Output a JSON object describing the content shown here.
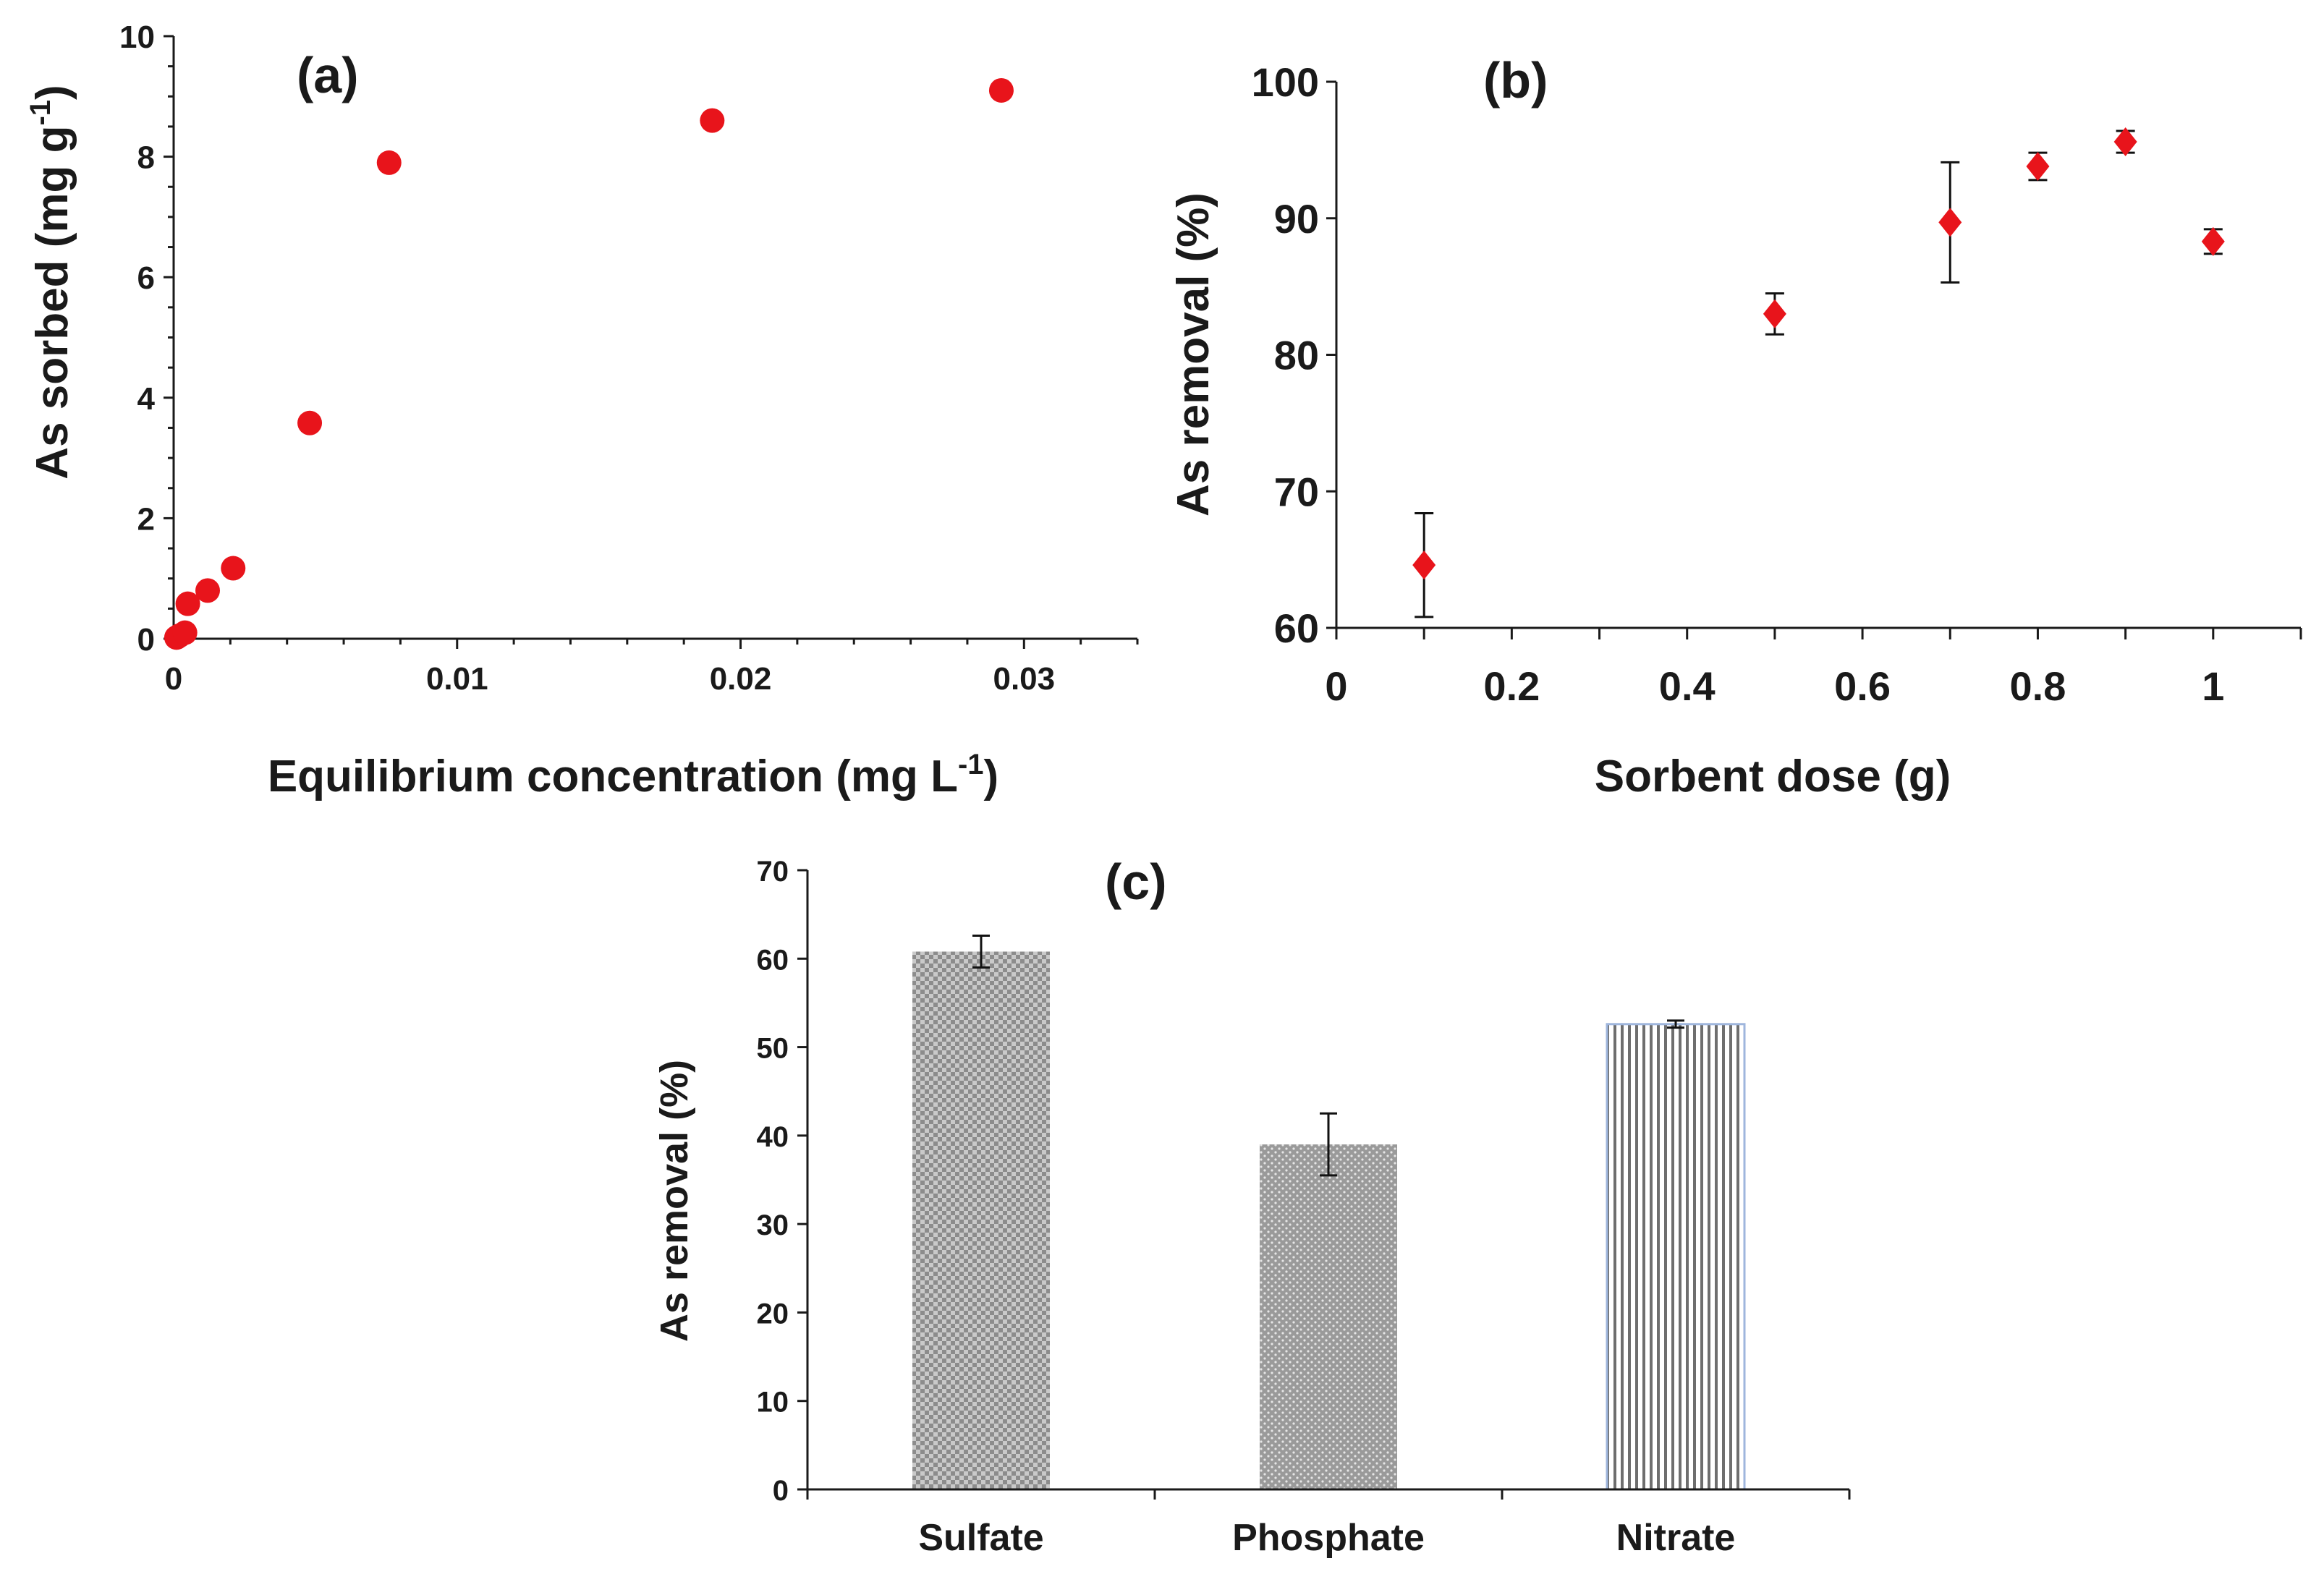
{
  "chart_data": [
    {
      "type": "scatter",
      "panel_label": "(a)",
      "xlabel": "Equilibrium concentration (mg L",
      "xlabel_sup": "-1",
      "xlabel_tail": ")",
      "ylabel": "As sorbed (mg g",
      "ylabel_sup": "-1",
      "ylabel_tail": ")",
      "xlim": [
        0,
        0.034
      ],
      "ylim": [
        0,
        10
      ],
      "x_ticks": [
        0,
        0.01,
        0.02,
        0.03
      ],
      "x_tick_labels": [
        "0",
        "0.01",
        "0.02",
        "0.03"
      ],
      "y_ticks": [
        0,
        2,
        4,
        6,
        8,
        10
      ],
      "y_tick_labels": [
        "0",
        "2",
        "4",
        "6",
        "8",
        "10"
      ],
      "marker": "circle",
      "color": "#e8141b",
      "series": [
        {
          "x": [
            0.0001,
            0.0002,
            0.0004,
            0.0005,
            0.0012,
            0.0021,
            0.0048,
            0.0076,
            0.019,
            0.0292
          ],
          "y": [
            0.02,
            0.05,
            0.1,
            0.58,
            0.8,
            1.17,
            3.58,
            7.9,
            8.6,
            9.1
          ]
        }
      ]
    },
    {
      "type": "scatter",
      "panel_label": "(b)",
      "xlabel": "Sorbent dose (g)",
      "ylabel": "As removal (%)",
      "xlim": [
        0,
        1.1
      ],
      "ylim": [
        60,
        100
      ],
      "x_ticks": [
        0,
        0.2,
        0.4,
        0.6,
        0.8,
        1
      ],
      "x_tick_labels": [
        "0",
        "0.2",
        "0.4",
        "0.6",
        "0.8",
        "1"
      ],
      "y_ticks": [
        60,
        70,
        80,
        90,
        100
      ],
      "y_tick_labels": [
        "60",
        "70",
        "80",
        "90",
        "100"
      ],
      "marker": "diamond",
      "color": "#e8141b",
      "series": [
        {
          "x": [
            0.1,
            0.5,
            0.7,
            0.8,
            0.9,
            1.0
          ],
          "y": [
            64.6,
            83.0,
            89.7,
            93.8,
            95.6,
            88.3
          ],
          "err": [
            3.8,
            1.5,
            4.4,
            1.0,
            0.8,
            0.9
          ]
        }
      ]
    },
    {
      "type": "bar",
      "panel_label": "(c)",
      "ylabel": "As removal (%)",
      "ylim": [
        0,
        70
      ],
      "y_ticks": [
        0,
        10,
        20,
        30,
        40,
        50,
        60,
        70
      ],
      "y_tick_labels": [
        "0",
        "10",
        "20",
        "30",
        "40",
        "50",
        "60",
        "70"
      ],
      "categories": [
        "Sulfate",
        "Phosphate",
        "Nitrate"
      ],
      "values": [
        60.8,
        39.0,
        52.6
      ],
      "err": [
        1.8,
        3.5,
        0.4
      ],
      "patterns": [
        "checker",
        "dots",
        "vertical-lines"
      ],
      "bar_color": "#a9a9a9",
      "bar_outline_nitrate": "#9fb6dd"
    }
  ]
}
